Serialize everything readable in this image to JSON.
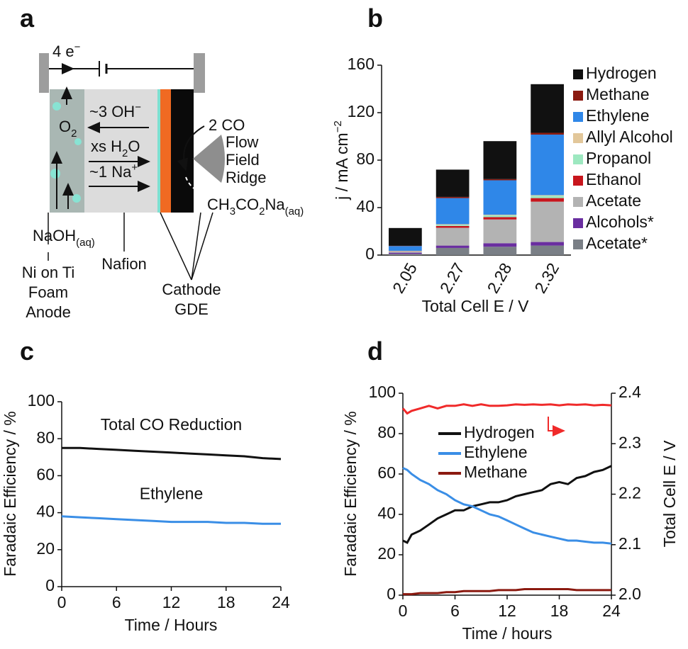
{
  "panel_labels": [
    "a",
    "b",
    "c",
    "d"
  ],
  "diagram": {
    "electrons": [
      "4 e",
      "−"
    ],
    "oxygen": [
      "O",
      "2"
    ],
    "hydroxide": [
      "~3 OH",
      "−"
    ],
    "water": [
      "xs H",
      "2",
      "O"
    ],
    "sodium": [
      "~1 Na",
      "+"
    ],
    "co": "2 CO",
    "flow_field": [
      "Flow",
      "Field",
      "Ridge"
    ],
    "product": [
      "CH",
      "3",
      "CO",
      "2",
      "Na",
      "(aq)"
    ],
    "electrolyte": [
      "NaOH",
      "(aq)"
    ],
    "anode": [
      "Ni on Ti",
      "Foam",
      "Anode"
    ],
    "membrane": "Nafion",
    "cathode": [
      "Cathode",
      "GDE"
    ]
  },
  "chart_data": [
    {
      "type": "bar",
      "stacked": true,
      "xlabel": "Total Cell E / V",
      "ylabel": [
        "j / mA cm",
        "−2"
      ],
      "categories": [
        "2.05",
        "2.27",
        "2.28",
        "2.32"
      ],
      "ylim": [
        0,
        160
      ],
      "yticks": [
        0,
        40,
        80,
        120,
        160
      ],
      "legend": "right",
      "series": [
        {
          "name": "Hydrogen",
          "color": "#111111",
          "values": [
            15,
            23,
            32,
            41
          ]
        },
        {
          "name": "Methane",
          "color": "#8b1a10",
          "values": [
            0.2,
            1,
            1,
            1.5
          ]
        },
        {
          "name": "Ethylene",
          "color": "#2f87e8",
          "values": [
            4,
            22,
            29,
            51
          ]
        },
        {
          "name": "Allyl Alcohol",
          "color": "#e2c79a",
          "values": [
            0.2,
            0.5,
            0.5,
            0.5
          ]
        },
        {
          "name": "Propanol",
          "color": "#9de8c0",
          "values": [
            0.2,
            1,
            1.5,
            2
          ]
        },
        {
          "name": "Ethanol",
          "color": "#c8161d",
          "values": [
            0.2,
            1.5,
            2,
            3
          ]
        },
        {
          "name": "Acetate",
          "color": "#b3b3b3",
          "values": [
            1,
            15,
            20,
            34
          ]
        },
        {
          "name": "Alcohols*",
          "color": "#6a2ea0",
          "values": [
            1,
            2,
            3,
            3
          ]
        },
        {
          "name": "Acetate*",
          "color": "#7a7f86",
          "values": [
            1,
            6,
            7,
            8
          ]
        }
      ]
    },
    {
      "type": "line",
      "xlabel": "Time / Hours",
      "ylabel": "Faradaic Efficiency / %",
      "x": [
        0,
        2,
        4,
        6,
        8,
        10,
        12,
        14,
        16,
        18,
        20,
        22,
        24
      ],
      "xlim": [
        0,
        24
      ],
      "xticks": [
        0,
        6,
        12,
        18,
        24
      ],
      "ylim": [
        0,
        100
      ],
      "yticks": [
        0,
        20,
        40,
        60,
        80,
        100
      ],
      "legend": "label-above-line",
      "series": [
        {
          "name": "Total CO Reduction",
          "color": "#111111",
          "values": [
            75,
            75,
            74.5,
            74,
            73.5,
            73,
            72.5,
            72,
            71.5,
            71,
            70.5,
            69.5,
            69
          ]
        },
        {
          "name": "Ethylene",
          "color": "#3a8ee6",
          "values": [
            38,
            37.5,
            37,
            36.5,
            36,
            35.5,
            35,
            35,
            35,
            34.5,
            34.5,
            34,
            34
          ]
        }
      ]
    },
    {
      "type": "line",
      "xlabel": "Time / hours",
      "ylabel": "Faradaic Efficiency / %",
      "y2label": "Total Cell E / V",
      "x": [
        0,
        0.5,
        1,
        2,
        3,
        4,
        5,
        6,
        7,
        8,
        9,
        10,
        11,
        12,
        13,
        14,
        15,
        16,
        17,
        18,
        19,
        20,
        21,
        22,
        23,
        24
      ],
      "xlim": [
        0,
        24
      ],
      "xticks": [
        0,
        6,
        12,
        18,
        24
      ],
      "ylim": [
        0,
        100
      ],
      "yticks": [
        0,
        20,
        40,
        60,
        80,
        100
      ],
      "y2lim": [
        2.0,
        2.4
      ],
      "y2ticks": [
        {
          "value": 2.0,
          "label": "2.0"
        },
        2.1,
        2.2,
        2.3,
        2.4
      ],
      "legend": "upper-left",
      "series": [
        {
          "name": "Hydrogen",
          "color": "#111111",
          "values": [
            27,
            26,
            30,
            32,
            35,
            38,
            40,
            42,
            42,
            44,
            45,
            46,
            46,
            47,
            49,
            50,
            51,
            52,
            55,
            56,
            55,
            58,
            59,
            61,
            62,
            64
          ]
        },
        {
          "name": "Ethylene",
          "color": "#3a8ee6",
          "values": [
            63,
            62,
            60,
            57,
            55,
            52,
            50,
            47,
            45,
            44,
            42,
            40,
            39,
            37,
            35,
            33,
            31,
            30,
            29,
            28,
            27,
            27,
            26.5,
            26,
            26,
            25.5
          ]
        },
        {
          "name": "Methane",
          "color": "#8b1a10",
          "values": [
            0.5,
            0.5,
            0.5,
            1,
            1,
            1,
            1.5,
            1.5,
            2,
            2,
            2,
            2,
            2.5,
            2.5,
            2.5,
            3,
            3,
            3,
            3,
            3,
            3,
            2.5,
            2.5,
            2.5,
            2.5,
            2.5
          ]
        },
        {
          "color": "#f02a2a",
          "axis": "y2",
          "values": [
            2.37,
            2.36,
            2.365,
            2.37,
            2.375,
            2.37,
            2.375,
            2.375,
            2.378,
            2.375,
            2.378,
            2.375,
            2.375,
            2.376,
            2.378,
            2.377,
            2.378,
            2.377,
            2.378,
            2.376,
            2.378,
            2.377,
            2.378,
            2.376,
            2.377,
            2.376
          ]
        }
      ]
    }
  ]
}
